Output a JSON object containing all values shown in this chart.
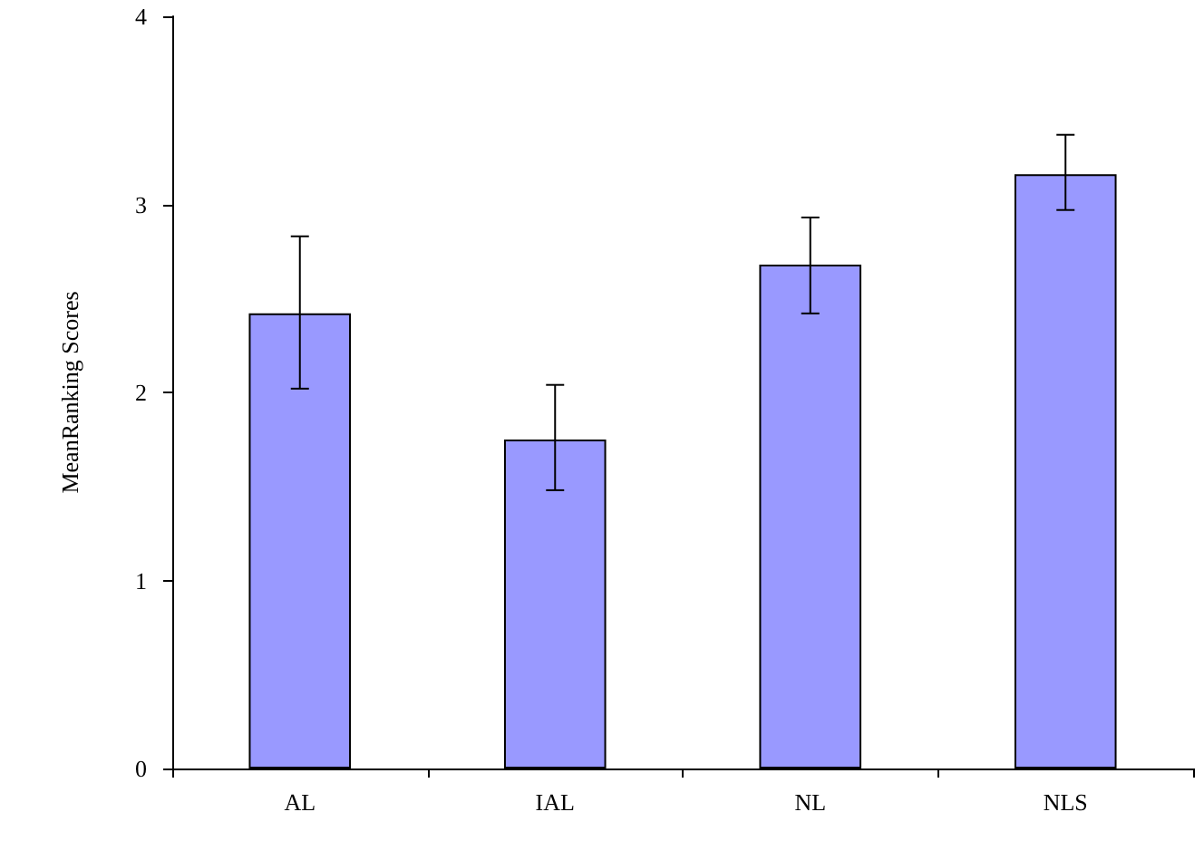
{
  "chart_data": {
    "type": "bar",
    "ylabel": "MeanRanking Scores",
    "categories": [
      "AL",
      "IAL",
      "NL",
      "NLS"
    ],
    "values": [
      2.42,
      1.75,
      2.68,
      3.16
    ],
    "errors": [
      [
        2.02,
        2.83
      ],
      [
        1.48,
        2.04
      ],
      [
        2.42,
        2.93
      ],
      [
        2.97,
        3.37
      ]
    ],
    "color": "#9999ff",
    "ylim": [
      0,
      4
    ],
    "yticks": [
      0,
      1,
      2,
      3,
      4
    ],
    "grid": false
  }
}
